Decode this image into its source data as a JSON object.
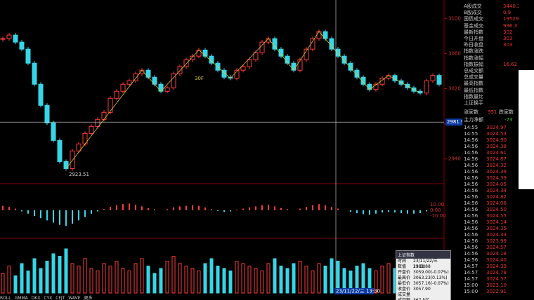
{
  "main": {
    "type": "candlestick",
    "closes": [
      3077,
      3081,
      3073,
      3065,
      3049,
      3025,
      3001,
      2981,
      2961,
      2937,
      2929,
      2949,
      2957,
      2969,
      2977,
      2985,
      2993,
      3009,
      3017,
      3025,
      3029,
      3037,
      3041,
      3033,
      3025,
      3017,
      3021,
      3037,
      3045,
      3053,
      3057,
      3064,
      3057,
      3049,
      3041,
      3033,
      3032,
      3041,
      3045,
      3053,
      3061,
      3073,
      3077,
      3065,
      3057,
      3049,
      3041,
      3053,
      3065,
      3077,
      3085,
      3077,
      3065,
      3057,
      3049,
      3041,
      3033,
      3025,
      3019,
      3025,
      3032,
      3035,
      3029,
      3025,
      3021,
      3017,
      3015,
      3029,
      3035,
      3025
    ],
    "volumes": [
      40,
      55,
      35,
      60,
      45,
      70,
      50,
      65,
      80,
      75,
      90,
      60,
      55,
      70,
      50,
      45,
      60,
      55,
      65,
      50,
      45,
      60,
      70,
      55,
      40,
      50,
      65,
      75,
      60,
      55,
      50,
      45,
      60,
      70,
      55,
      50,
      45,
      65,
      60,
      55,
      50,
      45,
      60,
      70,
      55,
      50,
      60,
      65,
      55,
      45,
      60,
      55,
      70,
      65,
      50,
      45,
      55,
      60,
      50,
      45,
      55,
      60,
      50,
      45,
      55,
      50,
      45,
      60,
      55,
      50
    ],
    "macd": [
      8,
      6,
      3,
      -2,
      -6,
      -10,
      -14,
      -18,
      -22,
      -26,
      -28,
      -24,
      -18,
      -12,
      -6,
      -2,
      2,
      6,
      9,
      11,
      12,
      10,
      7,
      4,
      2,
      0,
      2,
      5,
      7,
      8,
      9,
      8,
      5,
      2,
      -1,
      -3,
      -2,
      1,
      3,
      5,
      7,
      9,
      10,
      7,
      4,
      2,
      0,
      3,
      6,
      9,
      11,
      9,
      6,
      3,
      0,
      -3,
      -5,
      -7,
      -8,
      -6,
      -4,
      -3,
      -4,
      -5,
      -6,
      -6,
      -5,
      -2,
      1,
      0
    ],
    "ylim": [
      2915,
      3121
    ],
    "yticks": [
      2940,
      2980,
      3020,
      3060,
      3100
    ],
    "macd_ylim": [
      -40,
      40
    ],
    "macd_yticks": [
      {
        "value": 10,
        "label": "10.00"
      },
      {
        "value": 0,
        "label": "0.00"
      },
      {
        "value": -10,
        "label": "-10.00"
      }
    ],
    "wave_points": [
      10,
      22,
      25,
      31,
      36,
      42,
      46,
      50,
      58,
      61,
      66
    ],
    "low_label": "2923.51",
    "wave_label": "30F",
    "cross_price": 2981.9,
    "cross_label": "2981.9",
    "cross_time": "23/11/22/三 13:30"
  },
  "stats": [
    {
      "label": "A股成交",
      "value": "3440.2"
    },
    {
      "label": "B股成交",
      "value": "0.9"
    },
    {
      "label": "国债成交",
      "value": "19529.9"
    },
    {
      "label": "基金成交",
      "value": "936.3"
    },
    {
      "label": "最新指数",
      "value": "302"
    },
    {
      "label": "今日开盘",
      "value": "303"
    },
    {
      "label": "昨日收盘",
      "value": "303"
    },
    {
      "label": "指数涨跌",
      "value": ""
    },
    {
      "label": "指数涨幅",
      "value": ""
    },
    {
      "label": "指数振幅",
      "value": "16.62"
    },
    {
      "label": "总成交额",
      "value": ""
    },
    {
      "label": "总成交量",
      "value": ""
    },
    {
      "label": "最高指数",
      "value": ""
    },
    {
      "label": "最低指数",
      "value": ""
    },
    {
      "label": "指数量比",
      "value": ""
    },
    {
      "label": "上证换手",
      "value": ""
    }
  ],
  "breadth": {
    "up_label": "涨家数",
    "up": "951",
    "down_label": "跌家数",
    "flow_label": "主力净额",
    "flow": "-73"
  },
  "ticks": [
    {
      "t": "14:55",
      "p": "3024.97"
    },
    {
      "t": "14:55",
      "p": "3024.53"
    },
    {
      "t": "14:56",
      "p": "3024.90"
    },
    {
      "t": "14:56",
      "p": "3024.38"
    },
    {
      "t": "14:56",
      "p": "3024.61"
    },
    {
      "t": "14:56",
      "p": "3024.87"
    },
    {
      "t": "14:56",
      "p": "3024.32"
    },
    {
      "t": "14:56",
      "p": "3024.39"
    },
    {
      "t": "14:56",
      "p": "3024.39"
    },
    {
      "t": "14:56",
      "p": "3024.05"
    },
    {
      "t": "14:56",
      "p": "3024.34"
    },
    {
      "t": "14:56",
      "p": "3024.82"
    },
    {
      "t": "14:56",
      "p": "3024.08"
    },
    {
      "t": "14:56",
      "p": "3024.50"
    },
    {
      "t": "14:56",
      "p": "3024.55"
    },
    {
      "t": "14:56",
      "p": "3024.14"
    },
    {
      "t": "14:56",
      "p": "3024.35"
    },
    {
      "t": "14:56",
      "p": "3024.33"
    },
    {
      "t": "14:56",
      "p": "3023.99"
    },
    {
      "t": "14:56",
      "p": "3024.57"
    },
    {
      "t": "14:56",
      "p": "3024.18"
    },
    {
      "t": "14:56",
      "p": "3024.40"
    },
    {
      "t": "14:57",
      "p": "3024.39"
    },
    {
      "t": "14:57",
      "p": "3024.78"
    },
    {
      "t": "14:57",
      "p": "3024.57"
    },
    {
      "t": "15:00",
      "p": "3023.10"
    },
    {
      "t": "15:00",
      "p": "3022.91"
    }
  ],
  "popup": {
    "title": "上证指数",
    "rows": [
      {
        "k": "时间",
        "v": "23/11/22/三 13:30"
      },
      {
        "k": "数值",
        "v": "2981.88"
      },
      {
        "k": "开盘价",
        "v": "3059.00(-0.07%)"
      },
      {
        "k": "最高价",
        "v": "3063.23(0.13%)"
      },
      {
        "k": "最低价",
        "v": "3057.16(-0.07%)"
      },
      {
        "k": "收盘价",
        "v": "3057.90"
      },
      {
        "k": "成交量",
        "v": ""
      },
      {
        "k": "成交额",
        "v": "367.5亿"
      }
    ]
  },
  "indicators": [
    "ROLL",
    "GMMA",
    "DKX",
    "CYX",
    "CFJT",
    "WAVE",
    "更多"
  ]
}
